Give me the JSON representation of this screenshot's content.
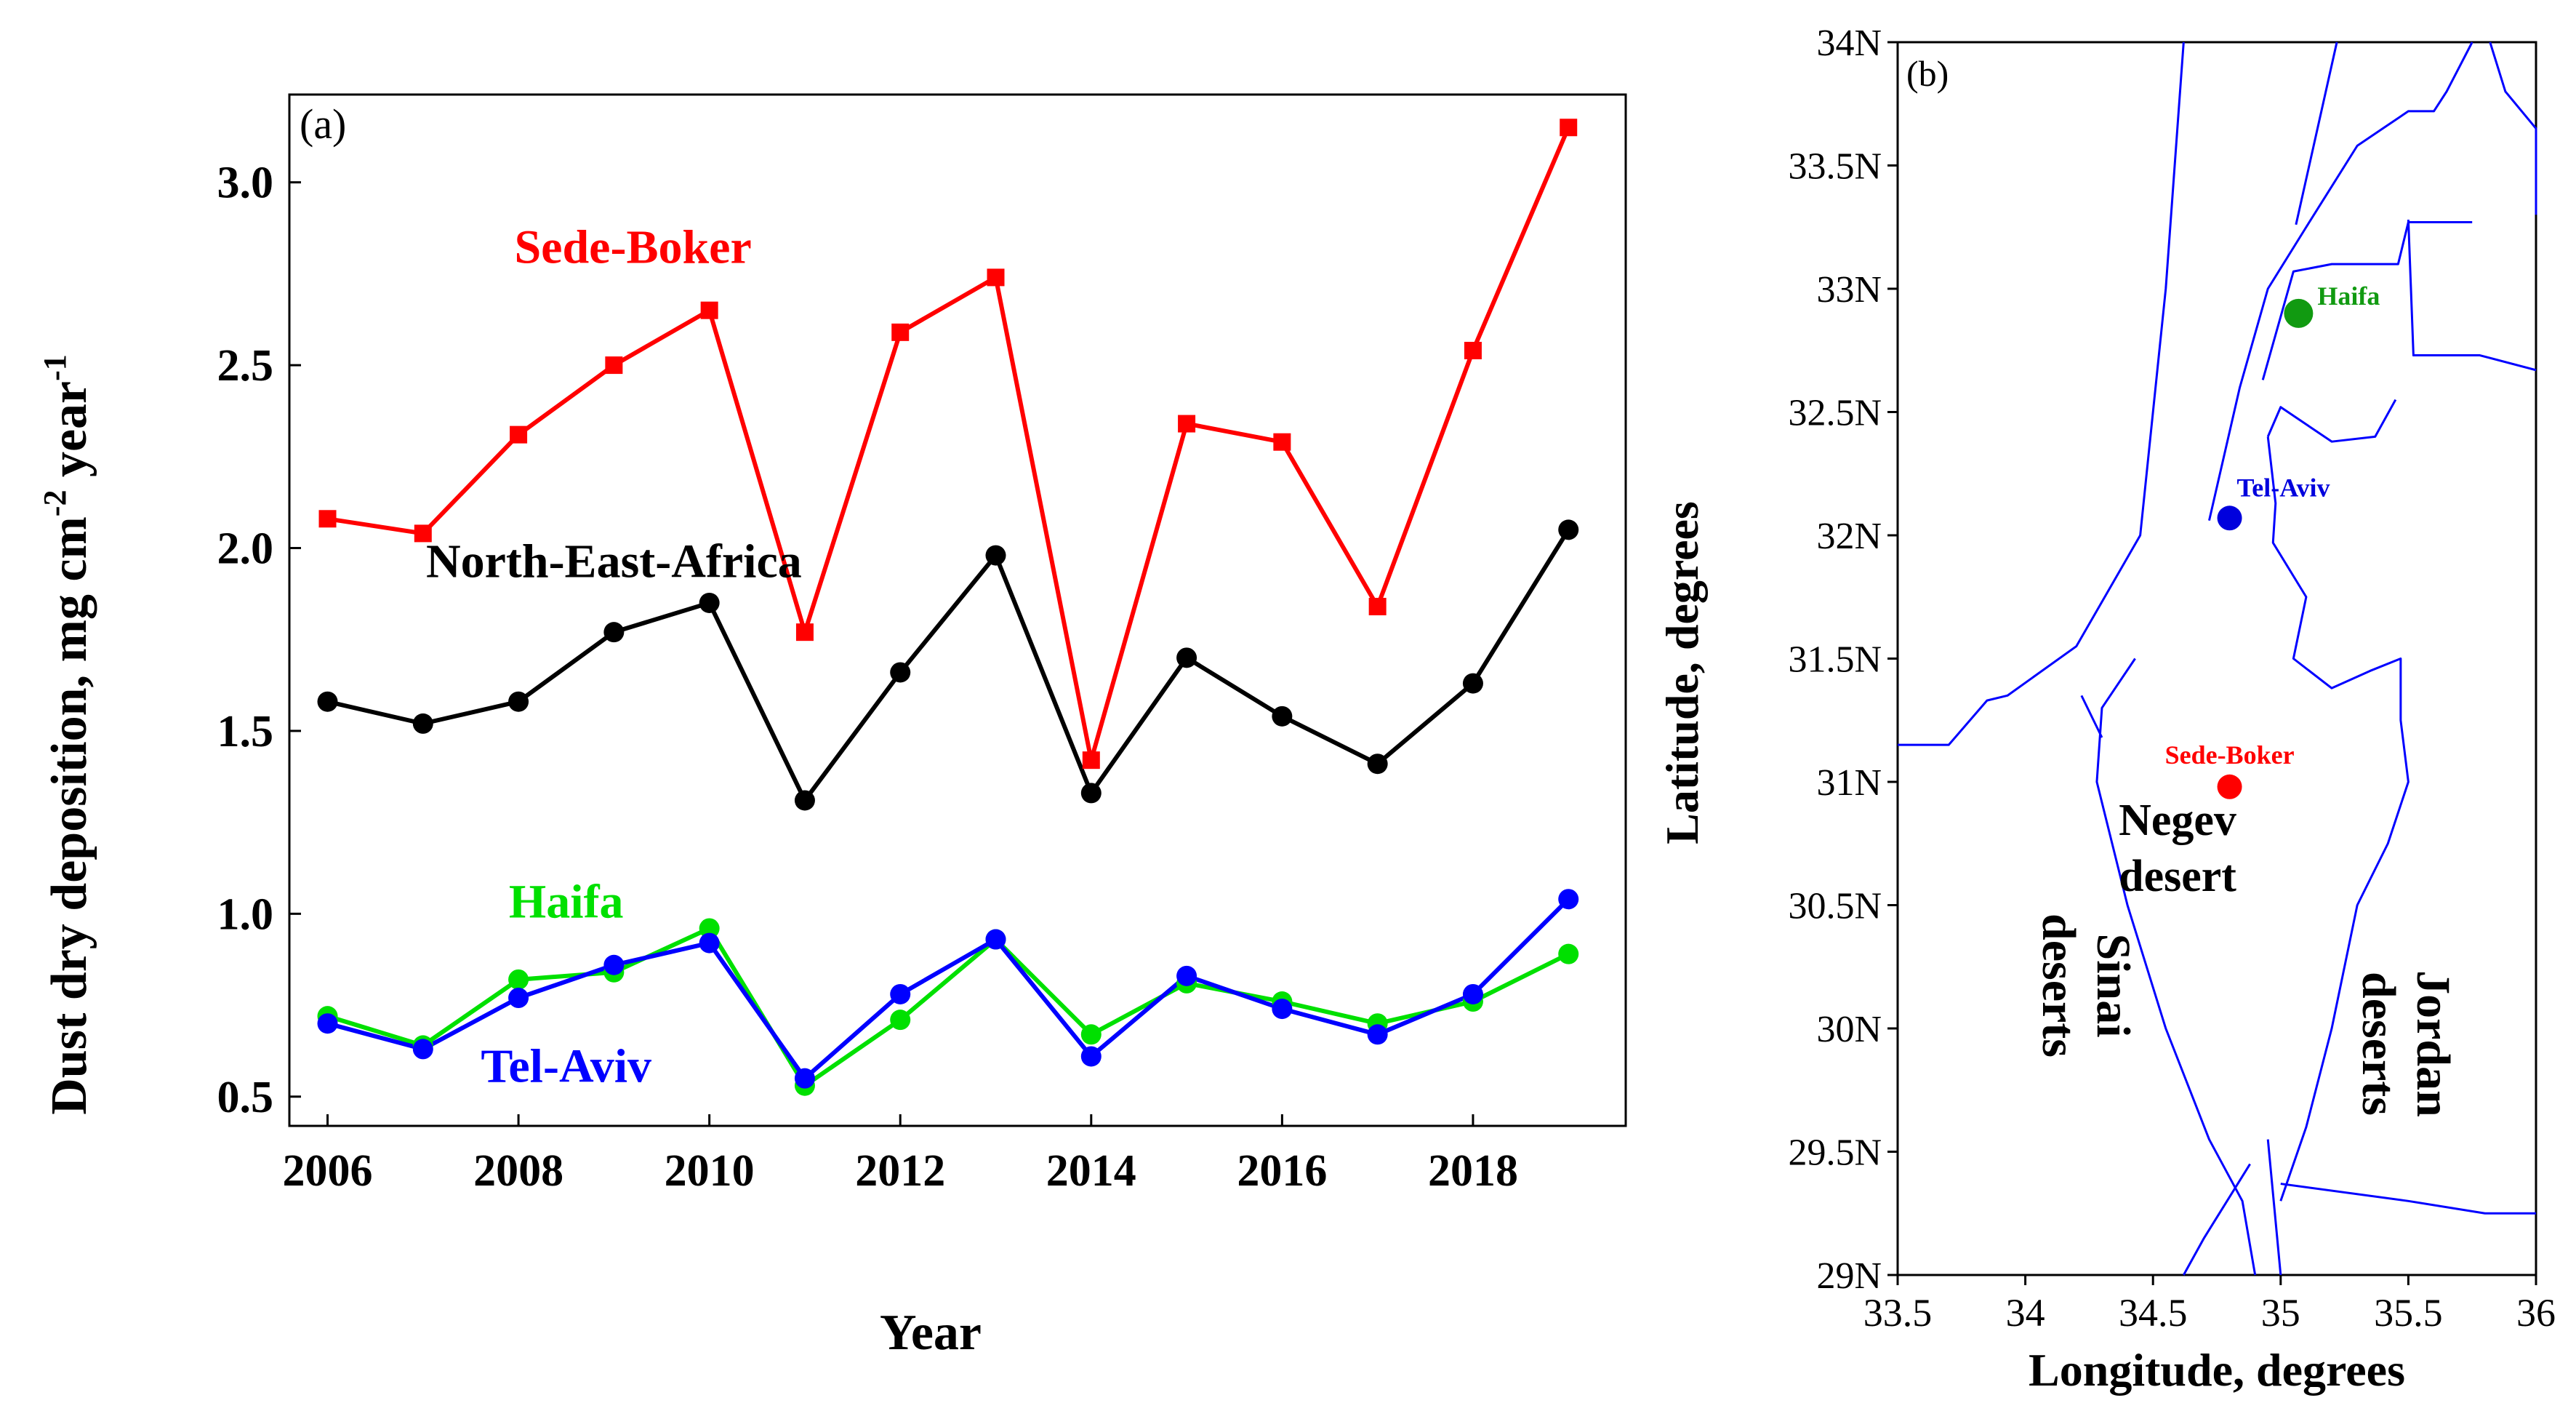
{
  "chart_data": [
    {
      "type": "line",
      "panel_label": "(a)",
      "xlabel": "Year",
      "ylabel": "Dust dry deposition,  mg cm",
      "ylabel_unit_sup1": "-2",
      "ylabel_unit_mid": " year",
      "ylabel_unit_sup2": "-1",
      "xlim": [
        2005.6,
        2019.6
      ],
      "ylim": [
        0.42,
        3.24
      ],
      "xticks": [
        2006,
        2008,
        2010,
        2012,
        2014,
        2016,
        2018
      ],
      "xtick_labels": [
        "2006",
        "2008",
        "2010",
        "2012",
        "2014",
        "2016",
        "2018"
      ],
      "yticks": [
        0.5,
        1.0,
        1.5,
        2.0,
        2.5,
        3.0
      ],
      "ytick_labels": [
        "0.5",
        "1.0",
        "1.5",
        "2.0",
        "2.5",
        "3.0"
      ],
      "x": [
        2006,
        2007,
        2008,
        2009,
        2010,
        2011,
        2012,
        2013,
        2014,
        2015,
        2016,
        2017,
        2018,
        2019
      ],
      "series": [
        {
          "name": "Sede-Boker",
          "color": "#ff0000",
          "marker": "square",
          "label_pos": {
            "x": 2009.2,
            "y": 2.78
          },
          "values": [
            2.08,
            2.04,
            2.31,
            2.5,
            2.65,
            1.77,
            2.59,
            2.74,
            1.42,
            2.34,
            2.29,
            1.84,
            2.54,
            3.15
          ]
        },
        {
          "name": "North-East-Africa",
          "color": "#000000",
          "marker": "circle",
          "label_pos": {
            "x": 2009.0,
            "y": 1.92
          },
          "values": [
            1.58,
            1.52,
            1.58,
            1.77,
            1.85,
            1.31,
            1.66,
            1.98,
            1.33,
            1.7,
            1.54,
            1.41,
            1.63,
            2.05
          ]
        },
        {
          "name": "Haifa",
          "color": "#00e000",
          "marker": "circle",
          "label_pos": {
            "x": 2008.5,
            "y": 0.99
          },
          "values": [
            0.72,
            0.64,
            0.82,
            0.84,
            0.96,
            0.53,
            0.71,
            0.93,
            0.67,
            0.81,
            0.76,
            0.7,
            0.76,
            0.89
          ]
        },
        {
          "name": "Tel-Aviv",
          "color": "#0000ff",
          "marker": "circle",
          "label_pos": {
            "x": 2008.5,
            "y": 0.54
          },
          "values": [
            0.7,
            0.63,
            0.77,
            0.86,
            0.92,
            0.55,
            0.78,
            0.93,
            0.61,
            0.83,
            0.74,
            0.67,
            0.78,
            1.04
          ]
        }
      ]
    },
    {
      "type": "map",
      "panel_label": "(b)",
      "xlabel": "Longitude,  degrees",
      "ylabel": "Latitude,  degrees",
      "xlim": [
        33.5,
        36
      ],
      "ylim": [
        29,
        34
      ],
      "xtick_labels": [
        "33.5",
        "34",
        "34.5",
        "35",
        "35.5",
        "36"
      ],
      "ytick_labels": [
        "29N",
        "29.5N",
        "30N",
        "30.5N",
        "31N",
        "31.5N",
        "32N",
        "32.5N",
        "33N",
        "33.5N",
        "34N"
      ],
      "border_color": "#0000ff",
      "border_lines": [
        [
          [
            34.62,
            34.0
          ],
          [
            34.55,
            33.0
          ],
          [
            34.45,
            32.0
          ],
          [
            34.2,
            31.55
          ],
          [
            33.93,
            31.35
          ],
          [
            33.85,
            31.33
          ],
          [
            33.7,
            31.15
          ],
          [
            33.5,
            31.15
          ]
        ],
        [
          [
            34.72,
            32.06
          ],
          [
            34.84,
            32.6
          ],
          [
            34.95,
            33.0
          ],
          [
            35.1,
            33.25
          ],
          [
            35.3,
            33.58
          ],
          [
            35.4,
            33.65
          ],
          [
            35.5,
            33.72
          ],
          [
            35.6,
            33.72
          ],
          [
            35.65,
            33.8
          ],
          [
            35.7,
            33.9
          ],
          [
            35.75,
            34.0
          ]
        ],
        [
          [
            34.93,
            32.63
          ],
          [
            35.05,
            33.07
          ],
          [
            35.2,
            33.1
          ],
          [
            35.46,
            33.1
          ],
          [
            35.5,
            33.27
          ],
          [
            35.75,
            33.27
          ]
        ],
        [
          [
            35.06,
            33.26
          ],
          [
            35.22,
            34.0
          ]
        ],
        [
          [
            35.82,
            34.0
          ],
          [
            35.88,
            33.8
          ],
          [
            36.0,
            33.65
          ],
          [
            36.0,
            33.3
          ]
        ],
        [
          [
            35.5,
            33.28
          ],
          [
            35.52,
            32.73
          ],
          [
            35.78,
            32.73
          ],
          [
            36.0,
            32.67
          ]
        ],
        [
          [
            34.43,
            31.5
          ],
          [
            34.3,
            31.3
          ],
          [
            34.28,
            31.0
          ],
          [
            34.4,
            30.5
          ],
          [
            34.55,
            30.0
          ],
          [
            34.72,
            29.55
          ],
          [
            34.85,
            29.3
          ],
          [
            34.9,
            29.0
          ]
        ],
        [
          [
            35.45,
            32.55
          ],
          [
            35.37,
            32.4
          ],
          [
            35.2,
            32.38
          ],
          [
            35.0,
            32.52
          ],
          [
            34.95,
            32.4
          ]
        ],
        [
          [
            34.95,
            32.4
          ],
          [
            34.98,
            32.13
          ],
          [
            34.97,
            31.97
          ],
          [
            35.1,
            31.75
          ],
          [
            35.05,
            31.5
          ],
          [
            35.2,
            31.38
          ],
          [
            35.35,
            31.45
          ],
          [
            35.47,
            31.5
          ],
          [
            35.47,
            31.25
          ],
          [
            35.5,
            31.0
          ],
          [
            35.42,
            30.75
          ],
          [
            35.3,
            30.5
          ],
          [
            35.2,
            30.0
          ],
          [
            35.1,
            29.6
          ],
          [
            35.0,
            29.3
          ]
        ],
        [
          [
            34.95,
            29.55
          ],
          [
            35.0,
            29.0
          ]
        ],
        [
          [
            34.88,
            29.45
          ],
          [
            34.7,
            29.15
          ],
          [
            34.62,
            29.0
          ]
        ],
        [
          [
            35.0,
            29.37
          ],
          [
            35.5,
            29.3
          ],
          [
            35.8,
            29.25
          ],
          [
            36.0,
            29.25
          ]
        ],
        [
          [
            34.3,
            31.18
          ],
          [
            34.22,
            31.35
          ]
        ]
      ],
      "cities": [
        {
          "name": "Haifa",
          "color": "#119a11",
          "lon": 35.07,
          "lat": 32.9
        },
        {
          "name": "Tel-Aviv",
          "color": "#0000dd",
          "lon": 34.8,
          "lat": 32.07
        },
        {
          "name": "Sede-Boker",
          "color": "#ff0000",
          "lon": 34.8,
          "lat": 30.98
        }
      ],
      "regions": [
        {
          "name": "Negev",
          "line2": "desert",
          "rotation": "none"
        },
        {
          "name": "Sinai",
          "line2": "deserts",
          "rotation": "cw"
        },
        {
          "name": "Jordan",
          "line2": "deserts",
          "rotation": "cw"
        }
      ]
    }
  ]
}
